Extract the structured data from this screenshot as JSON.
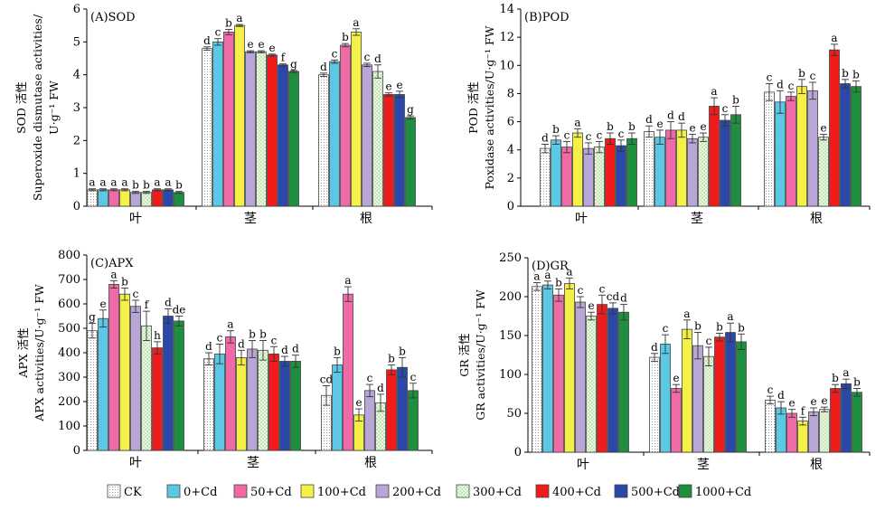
{
  "legend": [
    {
      "label": "CK",
      "color": "#ffffff",
      "pattern": "dots"
    },
    {
      "label": "0+Cd",
      "color": "#5bc8e6"
    },
    {
      "label": "50+Cd",
      "color": "#f06aa8"
    },
    {
      "label": "100+Cd",
      "color": "#f5f046"
    },
    {
      "label": "200+Cd",
      "color": "#b7a6d6"
    },
    {
      "label": "300+Cd",
      "color": "#bfe3b0",
      "pattern": "check"
    },
    {
      "label": "400+Cd",
      "color": "#f01c1c"
    },
    {
      "label": "500+Cd",
      "color": "#2a48a8"
    },
    {
      "label": "1000+Cd",
      "color": "#1e8f3e"
    }
  ],
  "chart_data": [
    {
      "type": "bar",
      "panel": "(A)SOD",
      "ylabel": [
        "SOD 活性",
        "Superoxide dismutase activities/",
        "U·g⁻¹ FW"
      ],
      "ylim": [
        0,
        6
      ],
      "yticks": [
        0,
        1,
        2,
        3,
        4,
        5,
        6
      ],
      "categories": [
        "叶",
        "茎",
        "根"
      ],
      "series": [
        {
          "name": "CK",
          "values": [
            0.5,
            4.8,
            4.0
          ],
          "errors": [
            0.03,
            0.05,
            0.05
          ],
          "letters": [
            "a",
            "d",
            "d"
          ]
        },
        {
          "name": "0+Cd",
          "values": [
            0.5,
            5.0,
            4.4
          ],
          "errors": [
            0.03,
            0.1,
            0.05
          ],
          "letters": [
            "a",
            "c",
            "c"
          ]
        },
        {
          "name": "50+Cd",
          "values": [
            0.5,
            5.3,
            4.9
          ],
          "errors": [
            0.03,
            0.08,
            0.05
          ],
          "letters": [
            "a",
            "b",
            "b"
          ]
        },
        {
          "name": "100+Cd",
          "values": [
            0.5,
            5.5,
            5.3
          ],
          "errors": [
            0.03,
            0.03,
            0.1
          ],
          "letters": [
            "a",
            "a",
            "a"
          ]
        },
        {
          "name": "200+Cd",
          "values": [
            0.42,
            4.7,
            4.3
          ],
          "errors": [
            0.03,
            0.03,
            0.05
          ],
          "letters": [
            "b",
            "e",
            "c"
          ]
        },
        {
          "name": "300+Cd",
          "values": [
            0.42,
            4.7,
            4.1
          ],
          "errors": [
            0.03,
            0.03,
            0.2
          ],
          "letters": [
            "b",
            "e",
            "d"
          ]
        },
        {
          "name": "400+Cd",
          "values": [
            0.5,
            4.6,
            3.4
          ],
          "errors": [
            0.03,
            0.03,
            0.05
          ],
          "letters": [
            "a",
            "e",
            "e"
          ]
        },
        {
          "name": "500+Cd",
          "values": [
            0.5,
            4.3,
            3.4
          ],
          "errors": [
            0.03,
            0.03,
            0.1
          ],
          "letters": [
            "a",
            "f",
            "e"
          ]
        },
        {
          "name": "1000+Cd",
          "values": [
            0.42,
            4.1,
            2.7
          ],
          "errors": [
            0.03,
            0.03,
            0.05
          ],
          "letters": [
            "b",
            "g",
            "g"
          ]
        }
      ]
    },
    {
      "type": "bar",
      "panel": "(B)POD",
      "ylabel": [
        "POD 活性",
        "Poxidase activities/U·g⁻¹ FW"
      ],
      "ylim": [
        0,
        14
      ],
      "yticks": [
        0,
        2,
        4,
        6,
        8,
        10,
        12,
        14
      ],
      "categories": [
        "叶",
        "茎",
        "根"
      ],
      "series": [
        {
          "name": "CK",
          "values": [
            4.1,
            5.3,
            8.1
          ],
          "errors": [
            0.3,
            0.4,
            0.6
          ],
          "letters": [
            "d",
            "d",
            "c"
          ]
        },
        {
          "name": "0+Cd",
          "values": [
            4.7,
            4.9,
            7.4
          ],
          "errors": [
            0.3,
            0.5,
            0.8
          ],
          "letters": [
            "b",
            "e",
            "d"
          ]
        },
        {
          "name": "50+Cd",
          "values": [
            4.2,
            5.4,
            7.8
          ],
          "errors": [
            0.4,
            0.6,
            0.3
          ],
          "letters": [
            "c",
            "d",
            "c"
          ]
        },
        {
          "name": "100+Cd",
          "values": [
            5.2,
            5.4,
            8.5
          ],
          "errors": [
            0.3,
            0.5,
            0.5
          ],
          "letters": [
            "a",
            "d",
            "b"
          ]
        },
        {
          "name": "200+Cd",
          "values": [
            4.1,
            4.8,
            8.2
          ],
          "errors": [
            0.4,
            0.3,
            0.6
          ],
          "letters": [
            "c",
            "e",
            "c"
          ]
        },
        {
          "name": "300+Cd",
          "values": [
            4.2,
            4.9,
            4.9
          ],
          "errors": [
            0.4,
            0.3,
            0.2
          ],
          "letters": [
            "c",
            "e",
            "e"
          ]
        },
        {
          "name": "400+Cd",
          "values": [
            4.8,
            7.1,
            11.1
          ],
          "errors": [
            0.4,
            0.6,
            0.4
          ],
          "letters": [
            "b",
            "a",
            "a"
          ]
        },
        {
          "name": "500+Cd",
          "values": [
            4.3,
            6.1,
            8.7
          ],
          "errors": [
            0.4,
            0.4,
            0.3
          ],
          "letters": [
            "c",
            "c",
            "b"
          ]
        },
        {
          "name": "1000+Cd",
          "values": [
            4.8,
            6.5,
            8.5
          ],
          "errors": [
            0.4,
            0.6,
            0.4
          ],
          "letters": [
            "b",
            "b",
            "b"
          ]
        }
      ]
    },
    {
      "type": "bar",
      "panel": "(C)APX",
      "ylabel": [
        "APX 活性",
        "APX activities/U·g⁻¹ FW"
      ],
      "ylim": [
        0,
        800
      ],
      "yticks": [
        0,
        100,
        200,
        300,
        400,
        500,
        600,
        700,
        800
      ],
      "categories": [
        "叶",
        "茎",
        "根"
      ],
      "series": [
        {
          "name": "CK",
          "values": [
            490,
            375,
            225
          ],
          "errors": [
            30,
            25,
            40
          ],
          "letters": [
            "g",
            "d",
            "cd"
          ]
        },
        {
          "name": "0+Cd",
          "values": [
            540,
            395,
            350
          ],
          "errors": [
            35,
            40,
            30
          ],
          "letters": [
            "e",
            "c",
            "b"
          ]
        },
        {
          "name": "50+Cd",
          "values": [
            680,
            465,
            640
          ],
          "errors": [
            15,
            25,
            30
          ],
          "letters": [
            "a",
            "a",
            "a"
          ]
        },
        {
          "name": "100+Cd",
          "values": [
            640,
            380,
            145
          ],
          "errors": [
            25,
            30,
            25
          ],
          "letters": [
            "b",
            "d",
            "e"
          ]
        },
        {
          "name": "200+Cd",
          "values": [
            590,
            415,
            245
          ],
          "errors": [
            25,
            35,
            25
          ],
          "letters": [
            "c",
            "b",
            "c"
          ]
        },
        {
          "name": "300+Cd",
          "values": [
            510,
            410,
            195
          ],
          "errors": [
            60,
            40,
            35
          ],
          "letters": [
            "f",
            "b",
            "d"
          ]
        },
        {
          "name": "400+Cd",
          "values": [
            420,
            395,
            330
          ],
          "errors": [
            25,
            30,
            20
          ],
          "letters": [
            "h",
            "c",
            "b"
          ]
        },
        {
          "name": "500+Cd",
          "values": [
            550,
            365,
            340
          ],
          "errors": [
            30,
            20,
            40
          ],
          "letters": [
            "d",
            "d",
            "b"
          ]
        },
        {
          "name": "1000+Cd",
          "values": [
            530,
            365,
            245
          ],
          "errors": [
            20,
            25,
            30
          ],
          "letters": [
            "de",
            "d",
            "c"
          ]
        }
      ]
    },
    {
      "type": "bar",
      "panel": "(D)GR",
      "ylabel": [
        "GR 活性",
        "GR activities/U·g⁻¹ FW"
      ],
      "ylim": [
        0,
        250
      ],
      "yticks": [
        0,
        50,
        100,
        150,
        200,
        250
      ],
      "categories": [
        "叶",
        "茎",
        "根"
      ],
      "series": [
        {
          "name": "CK",
          "values": [
            213,
            122,
            67
          ],
          "errors": [
            5,
            5,
            5
          ],
          "letters": [
            "a",
            "d",
            "c"
          ]
        },
        {
          "name": "0+Cd",
          "values": [
            215,
            139,
            57
          ],
          "errors": [
            5,
            12,
            8
          ],
          "letters": [
            "a",
            "c",
            "d"
          ]
        },
        {
          "name": "50+Cd",
          "values": [
            202,
            82,
            50
          ],
          "errors": [
            8,
            5,
            5
          ],
          "letters": [
            "b",
            "e",
            "e"
          ]
        },
        {
          "name": "100+Cd",
          "values": [
            217,
            158,
            40
          ],
          "errors": [
            7,
            12,
            5
          ],
          "letters": [
            "a",
            "a",
            "f"
          ]
        },
        {
          "name": "200+Cd",
          "values": [
            193,
            137,
            52
          ],
          "errors": [
            7,
            17,
            5
          ],
          "letters": [
            "c",
            "b",
            "e"
          ]
        },
        {
          "name": "300+Cd",
          "values": [
            175,
            123,
            55
          ],
          "errors": [
            5,
            12,
            3
          ],
          "letters": [
            "e",
            "c",
            "e"
          ]
        },
        {
          "name": "400+Cd",
          "values": [
            190,
            148,
            82
          ],
          "errors": [
            12,
            5,
            5
          ],
          "letters": [
            "c",
            "b",
            "b"
          ]
        },
        {
          "name": "500+Cd",
          "values": [
            185,
            154,
            88
          ],
          "errors": [
            7,
            12,
            6
          ],
          "letters": [
            "cd",
            "a",
            "a"
          ]
        },
        {
          "name": "1000+Cd",
          "values": [
            180,
            142,
            77
          ],
          "errors": [
            10,
            10,
            5
          ],
          "letters": [
            "d",
            "b",
            "b"
          ]
        }
      ]
    }
  ]
}
